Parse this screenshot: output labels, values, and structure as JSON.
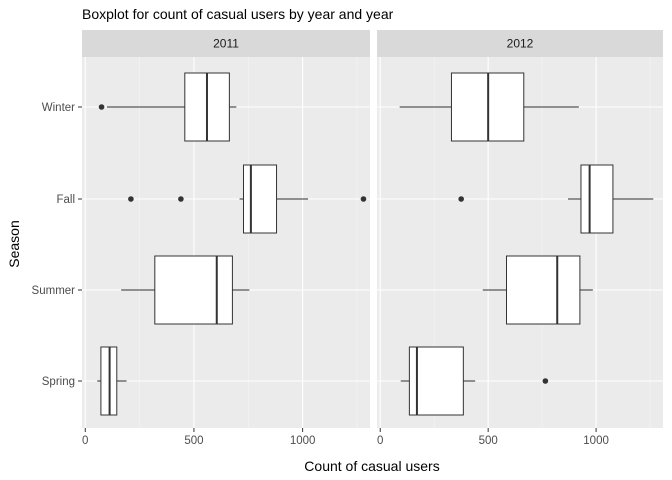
{
  "chart_data": {
    "type": "boxplot",
    "title": "Boxplot for count of casual users by year and year",
    "xlabel": "Count of casual users",
    "ylabel": "Season",
    "xlim": [
      -15,
      1310
    ],
    "x_ticks": [
      0,
      500,
      1000
    ],
    "x_tick_labels": [
      "0",
      "500",
      "1000"
    ],
    "categories": [
      "Spring",
      "Summer",
      "Fall",
      "Winter"
    ],
    "grid": true,
    "legend": "none",
    "panel_background": "#ebebeb",
    "strip_background": "#d9d9d9",
    "panels": [
      {
        "strip": "2011",
        "boxes": [
          {
            "category": "Winter",
            "whisker_low": 100,
            "q1": 458,
            "median": 560,
            "q3": 663,
            "whisker_high": 695,
            "outliers": [
              75
            ]
          },
          {
            "category": "Fall",
            "whisker_low": 710,
            "q1": 728,
            "median": 762,
            "q3": 880,
            "whisker_high": 1025,
            "outliers": [
              210,
              440,
              1280
            ]
          },
          {
            "category": "Summer",
            "whisker_low": 165,
            "q1": 320,
            "median": 605,
            "q3": 677,
            "whisker_high": 755,
            "outliers": []
          },
          {
            "category": "Spring",
            "whisker_low": 55,
            "q1": 72,
            "median": 112,
            "q3": 145,
            "whisker_high": 190,
            "outliers": []
          }
        ]
      },
      {
        "strip": "2012",
        "boxes": [
          {
            "category": "Winter",
            "whisker_low": 90,
            "q1": 330,
            "median": 500,
            "q3": 665,
            "whisker_high": 920,
            "outliers": []
          },
          {
            "category": "Fall",
            "whisker_low": 870,
            "q1": 930,
            "median": 970,
            "q3": 1078,
            "whisker_high": 1265,
            "outliers": [
              375
            ]
          },
          {
            "category": "Summer",
            "whisker_low": 475,
            "q1": 585,
            "median": 820,
            "q3": 925,
            "whisker_high": 985,
            "outliers": []
          },
          {
            "category": "Spring",
            "whisker_low": 95,
            "q1": 135,
            "median": 170,
            "q3": 385,
            "whisker_high": 440,
            "outliers": [
              765
            ]
          }
        ]
      }
    ]
  }
}
